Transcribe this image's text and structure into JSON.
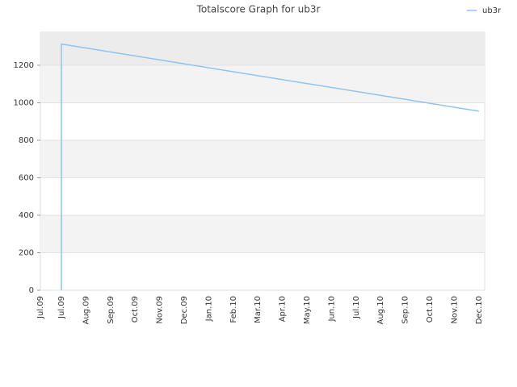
{
  "chart_data": {
    "type": "line",
    "title": "Totalscore Graph for ub3r",
    "categories": [
      "Jul.09",
      "Jul.09",
      "Aug.09",
      "Sep.09",
      "Oct.09",
      "Nov.09",
      "Dec.09",
      "Jan.10",
      "Feb.10",
      "Mar.10",
      "Apr.10",
      "May.10",
      "Jun.10",
      "Jul.10",
      "Aug.10",
      "Sep.10",
      "Oct.10",
      "Nov.10",
      "Dec.10"
    ],
    "series": [
      {
        "name": "ub3r",
        "color": "#8fc3f0",
        "x": [
          "Jul.09",
          "Jul.09",
          "Dec.10"
        ],
        "values": [
          0,
          1313,
          955
        ]
      }
    ],
    "ylim": [
      0,
      1376
    ],
    "yticks": [
      0,
      200,
      400,
      600,
      800,
      1000,
      1200
    ],
    "grid": true,
    "legend": "top-right"
  }
}
